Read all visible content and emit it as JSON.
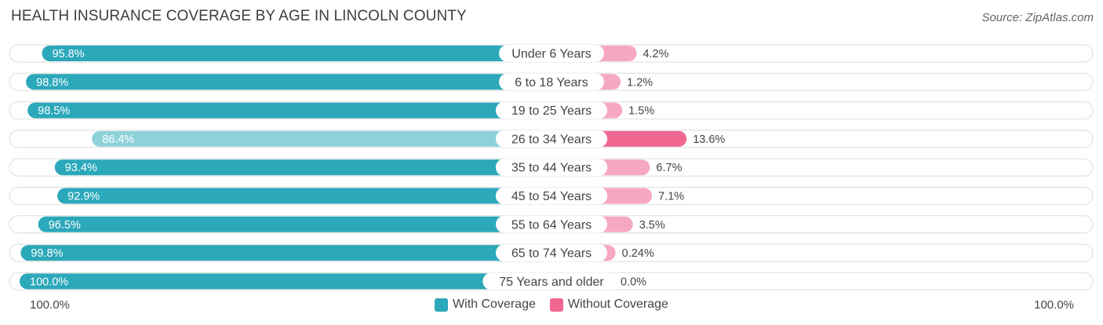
{
  "title": "HEALTH INSURANCE COVERAGE BY AGE IN LINCOLN COUNTY",
  "source": "Source: ZipAtlas.com",
  "colors": {
    "with_dark": "#2ba8ba",
    "with_light": "#8fd1d9",
    "without_dark": "#f06892",
    "without_light": "#f7a8c1",
    "track": "#efefef"
  },
  "axis": {
    "left_label": "100.0%",
    "right_label": "100.0%"
  },
  "legend": {
    "with_label": "With Coverage",
    "without_label": "Without Coverage"
  },
  "chart_data": {
    "type": "bar",
    "orientation": "horizontal-diverging",
    "title": "HEALTH INSURANCE COVERAGE BY AGE IN LINCOLN COUNTY",
    "categories": [
      "Under 6 Years",
      "6 to 18 Years",
      "19 to 25 Years",
      "26 to 34 Years",
      "35 to 44 Years",
      "45 to 54 Years",
      "55 to 64 Years",
      "65 to 74 Years",
      "75 Years and older"
    ],
    "series": [
      {
        "name": "With Coverage",
        "values": [
          95.8,
          98.8,
          98.5,
          86.4,
          93.4,
          92.9,
          96.5,
          99.8,
          100.0
        ],
        "labels": [
          "95.8%",
          "98.8%",
          "98.5%",
          "86.4%",
          "93.4%",
          "92.9%",
          "96.5%",
          "99.8%",
          "100.0%"
        ]
      },
      {
        "name": "Without Coverage",
        "values": [
          4.2,
          1.2,
          1.5,
          13.6,
          6.7,
          7.1,
          3.5,
          0.24,
          0.0
        ],
        "labels": [
          "4.2%",
          "1.2%",
          "1.5%",
          "13.6%",
          "6.7%",
          "7.1%",
          "3.5%",
          "0.24%",
          "0.0%"
        ]
      }
    ],
    "xlim": [
      0,
      100
    ]
  }
}
